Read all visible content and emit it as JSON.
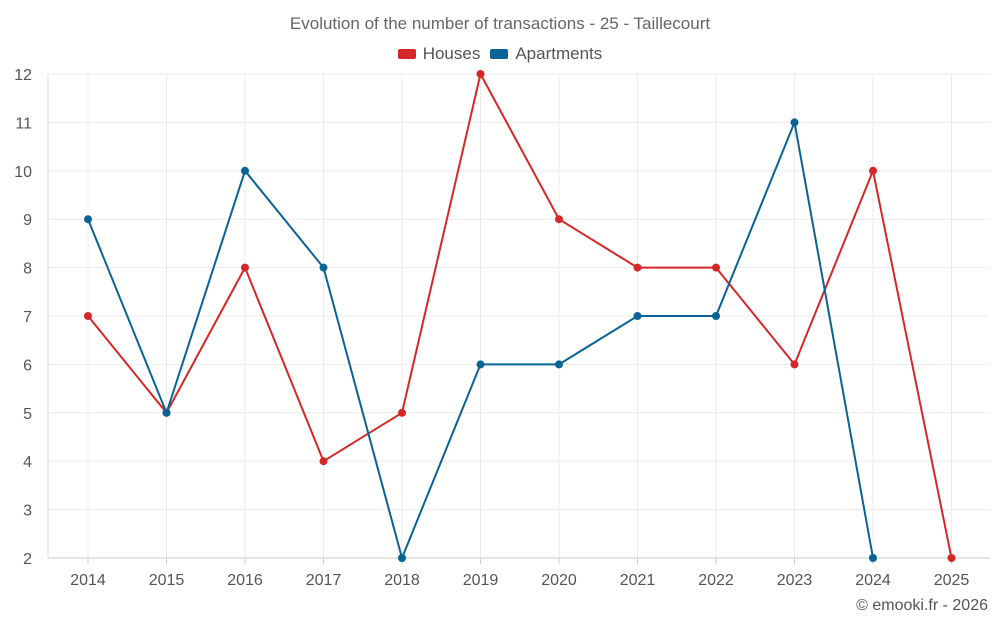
{
  "chart_data": {
    "type": "line",
    "title": "Evolution of the number of transactions - 25 - Taillecourt",
    "categories": [
      "2014",
      "2015",
      "2016",
      "2017",
      "2018",
      "2019",
      "2020",
      "2021",
      "2022",
      "2023",
      "2024",
      "2025"
    ],
    "series": [
      {
        "name": "Houses",
        "color": "#d62728",
        "values": [
          7,
          5,
          8,
          4,
          5,
          12,
          9,
          8,
          8,
          6,
          10,
          2
        ]
      },
      {
        "name": "Apartments",
        "color": "#0a6396",
        "values": [
          9,
          5,
          10,
          8,
          2,
          6,
          6,
          7,
          7,
          11,
          2,
          null
        ]
      }
    ],
    "xlabel": "",
    "ylabel": "",
    "ylim": [
      2,
      12
    ],
    "yticks": [
      "2",
      "3",
      "4",
      "5",
      "6",
      "7",
      "8",
      "9",
      "10",
      "11",
      "12"
    ],
    "grid": true,
    "legend_position": "top-center"
  },
  "credit": "© emooki.fr - 2026"
}
